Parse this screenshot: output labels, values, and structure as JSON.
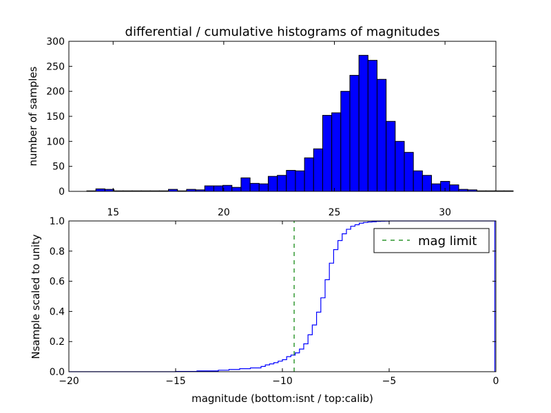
{
  "chart_data": [
    {
      "type": "bar",
      "title": "differential / cumulative histograms of magnitudes",
      "xlabel": "",
      "ylabel": "number of samples",
      "xlim": [
        13.0,
        32.3
      ],
      "ylim": [
        0,
        300
      ],
      "grid": false,
      "bar_color": "#0000ff",
      "xticks": [
        15,
        20,
        25,
        30
      ],
      "yticks": [
        0,
        50,
        100,
        150,
        200,
        250,
        300
      ],
      "bin_width": 0.41,
      "bin_start": 13.4,
      "values": [
        0,
        1,
        5,
        4,
        1,
        1,
        1,
        1,
        1,
        1,
        4,
        1,
        4,
        3,
        11,
        11,
        12,
        8,
        27,
        16,
        15,
        30,
        32,
        42,
        41,
        67,
        85,
        152,
        157,
        200,
        232,
        272,
        262,
        224,
        140,
        100,
        78,
        41,
        32,
        15,
        20,
        13,
        4,
        3,
        1,
        1,
        1,
        1,
        0,
        0,
        0,
        0
      ]
    },
    {
      "type": "line",
      "xlabel": "magnitude (bottom:isnt / top:calib)",
      "ylabel": "Nsample scaled to unity",
      "xlim": [
        -20,
        0
      ],
      "ylim": [
        0.0,
        1.0
      ],
      "xticks": [
        -20,
        -15,
        -10,
        -5,
        0
      ],
      "yticks": [
        0.0,
        0.2,
        0.4,
        0.6,
        0.8,
        1.0
      ],
      "grid": false,
      "series": [
        {
          "name": "",
          "style": "steps",
          "color": "#0000ff",
          "x": [
            -20.0,
            -15.0,
            -14.0,
            -13.0,
            -12.5,
            -12.0,
            -11.5,
            -11.0,
            -10.8,
            -10.6,
            -10.4,
            -10.2,
            -10.0,
            -9.8,
            -9.6,
            -9.4,
            -9.2,
            -9.0,
            -8.8,
            -8.6,
            -8.4,
            -8.2,
            -8.0,
            -7.8,
            -7.6,
            -7.4,
            -7.2,
            -7.0,
            -6.8,
            -6.6,
            -6.4,
            -6.2,
            -6.0,
            -5.8,
            -5.6,
            -5.4,
            -5.2,
            -5.0,
            -4.0,
            -0.05
          ],
          "y": [
            0.0,
            0.002,
            0.005,
            0.01,
            0.015,
            0.02,
            0.025,
            0.035,
            0.045,
            0.052,
            0.06,
            0.07,
            0.08,
            0.1,
            0.11,
            0.125,
            0.15,
            0.185,
            0.245,
            0.31,
            0.395,
            0.49,
            0.61,
            0.72,
            0.81,
            0.87,
            0.915,
            0.945,
            0.965,
            0.975,
            0.985,
            0.99,
            0.993,
            0.995,
            0.997,
            0.998,
            0.999,
            1.0,
            1.0,
            1.0
          ]
        },
        {
          "name": "mag limit",
          "style": "dashed-vertical",
          "color": "#008000",
          "x": [
            -9.45,
            -9.45
          ],
          "y": [
            0.0,
            1.0
          ]
        }
      ],
      "legend": {
        "placement": "top-right",
        "entries": [
          "mag limit"
        ]
      }
    }
  ]
}
